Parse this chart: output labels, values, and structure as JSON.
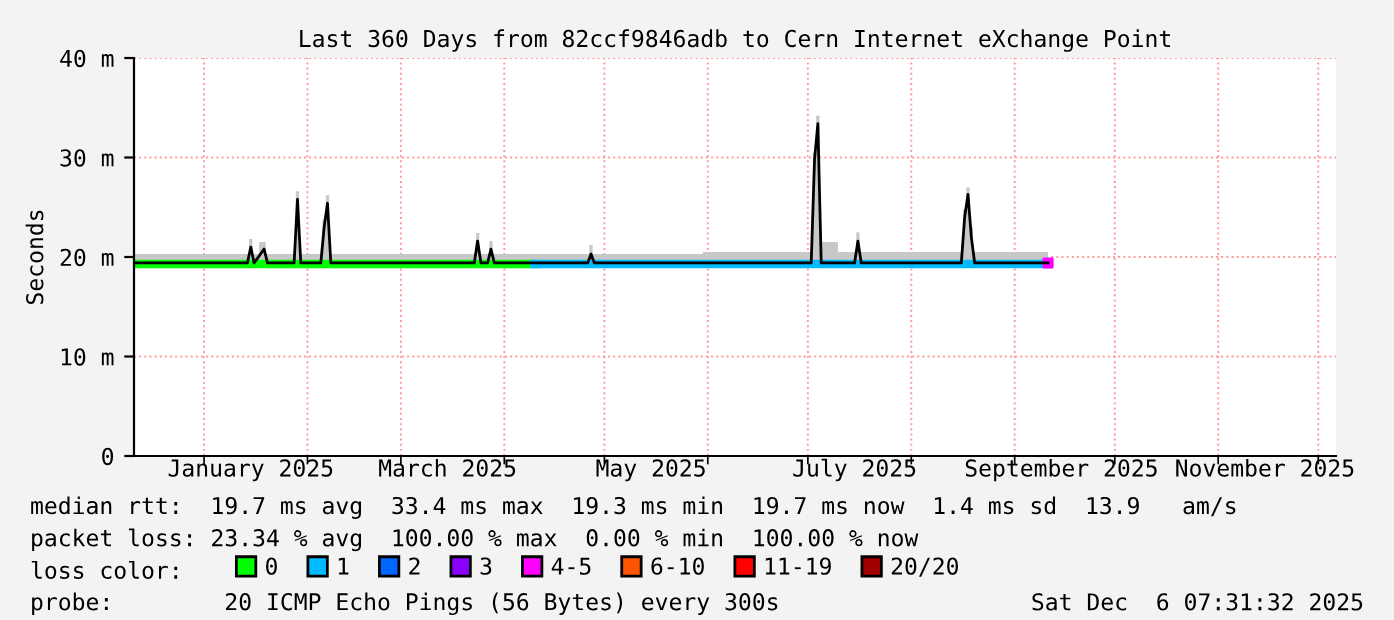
{
  "chart_data": {
    "type": "line",
    "title": "Last 360 Days from 82ccf9846adb to Cern Internet eXchange Point",
    "ylabel": "Seconds",
    "xlim": [
      "2024-12-11",
      "2025-12-06T07:30"
    ],
    "xticks": [
      {
        "value": "2025-01-01",
        "label": null
      },
      {
        "value": "2025-01-15",
        "label": "January 2025"
      },
      {
        "value": "2025-02-01",
        "label": null
      },
      {
        "value": "2025-03-01",
        "label": null
      },
      {
        "value": "2025-03-15",
        "label": "March 2025"
      },
      {
        "value": "2025-04-01",
        "label": null
      },
      {
        "value": "2025-05-01",
        "label": null
      },
      {
        "value": "2025-05-15",
        "label": "May 2025"
      },
      {
        "value": "2025-06-01",
        "label": null
      },
      {
        "value": "2025-07-01",
        "label": null
      },
      {
        "value": "2025-07-15",
        "label": "July 2025"
      },
      {
        "value": "2025-08-01",
        "label": null
      },
      {
        "value": "2025-09-01",
        "label": null
      },
      {
        "value": "2025-09-15",
        "label": "September 2025"
      },
      {
        "value": "2025-10-01",
        "label": null
      },
      {
        "value": "2025-11-01",
        "label": null
      },
      {
        "value": "2025-11-15",
        "label": "November 2025"
      },
      {
        "value": "2025-12-01",
        "label": null
      }
    ],
    "ylim": [
      0,
      40
    ],
    "yticks": [
      {
        "value": 0,
        "label": "0"
      },
      {
        "value": 10,
        "label": "10 m"
      },
      {
        "value": 20,
        "label": "20 m"
      },
      {
        "value": 30,
        "label": "30 m"
      },
      {
        "value": 40,
        "label": "40 m"
      }
    ],
    "grid": true,
    "legend": "bottom",
    "series": [
      {
        "name": "0",
        "color": "#00ff00",
        "x": [
          "2024-12-11",
          "2025-04-10"
        ],
        "values": [
          19.3,
          19.3
        ]
      },
      {
        "name": "1",
        "color": "#00bbff",
        "x": [
          "2025-04-10",
          "2025-09-11"
        ],
        "values": [
          19.3,
          19.3
        ]
      },
      {
        "name": "2",
        "color": "#0066ff"
      },
      {
        "name": "3",
        "color": "#8a00ff"
      },
      {
        "name": "4-5",
        "color": "#ff00ff",
        "type": "scatter",
        "x": [
          "2025-09-11"
        ],
        "values": [
          19.4
        ]
      },
      {
        "name": "6-10",
        "color": "#ff5500"
      },
      {
        "name": "11-19",
        "color": "#ff0000"
      },
      {
        "name": "20/20",
        "color": "#a10000"
      },
      {
        "color": "#000000",
        "x": [
          "2024-12-11",
          "2025-01-14",
          "2025-01-15",
          "2025-01-16",
          "2025-01-19",
          "2025-01-20",
          "2025-01-28",
          "2025-01-29",
          "2025-01-30",
          "2025-02-05",
          "2025-02-06",
          "2025-02-07",
          "2025-02-08",
          "2025-03-23",
          "2025-03-24",
          "2025-03-25",
          "2025-03-27",
          "2025-03-28",
          "2025-03-29",
          "2025-04-26",
          "2025-04-27",
          "2025-04-28",
          "2025-07-02",
          "2025-07-03",
          "2025-07-04",
          "2025-07-05",
          "2025-07-15",
          "2025-07-16",
          "2025-07-17",
          "2025-08-16",
          "2025-08-17",
          "2025-08-18",
          "2025-08-19",
          "2025-08-20",
          "2025-09-11"
        ],
        "values": [
          19.4,
          19.4,
          21.0,
          19.4,
          20.8,
          19.4,
          19.4,
          25.8,
          19.4,
          19.4,
          23.0,
          25.4,
          19.4,
          19.4,
          21.6,
          19.4,
          19.4,
          20.8,
          19.4,
          19.4,
          20.3,
          19.4,
          19.4,
          29.8,
          33.4,
          19.4,
          19.4,
          21.6,
          19.4,
          19.4,
          24.0,
          26.3,
          22.0,
          19.4,
          19.4
        ],
        "lower": [
          19.2,
          19.2,
          19.2,
          19.2,
          19.2,
          19.2,
          19.2,
          19.2,
          19.2,
          19.2,
          19.2,
          19.2,
          19.2,
          19.2,
          19.2,
          19.2,
          19.2,
          19.2,
          19.2,
          19.2,
          19.2,
          19.2,
          19.2,
          19.2,
          19.2,
          19.2,
          19.2,
          19.2,
          19.2,
          19.2,
          19.2,
          19.2,
          19.2,
          19.2,
          19.2
        ],
        "upper": [
          20.3,
          20.3,
          21.8,
          20.3,
          21.5,
          20.3,
          20.3,
          26.6,
          20.3,
          20.3,
          23.8,
          26.2,
          20.3,
          20.3,
          22.4,
          20.3,
          20.3,
          21.6,
          20.3,
          20.3,
          21.2,
          20.3,
          20.5,
          30.5,
          34.2,
          21.5,
          20.5,
          22.5,
          20.5,
          20.5,
          24.8,
          27.0,
          23.0,
          20.5,
          20.5
        ]
      }
    ],
    "annotations": [
      "median rtt:  19.7 ms avg  33.4 ms max  19.3 ms min  19.7 ms now  1.4 ms sd  13.9   am/s",
      "packet loss: 23.34 % avg  100.00 % max  0.00 % min  100.00 % now",
      "loss color:",
      "probe:        20 ICMP Echo Pings (56 Bytes) every 300s",
      "Sat Dec  6 07:31:32 2025"
    ]
  }
}
